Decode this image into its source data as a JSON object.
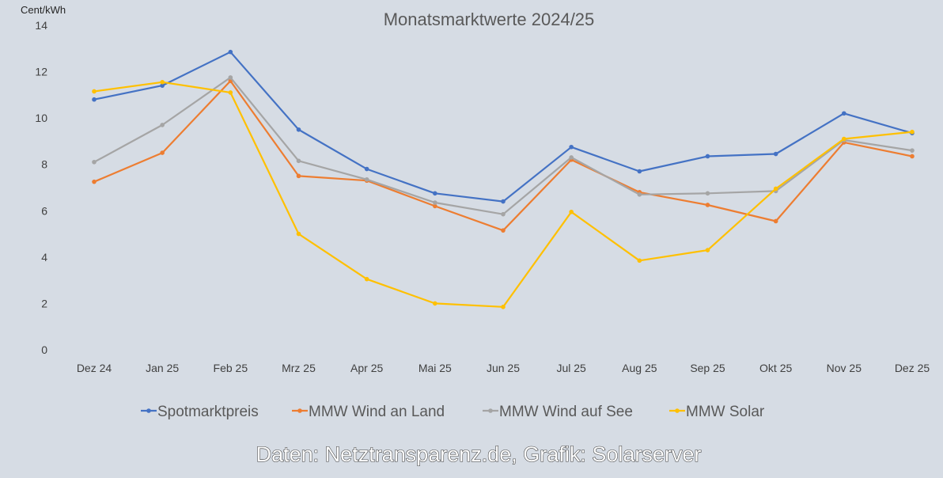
{
  "chart_data": {
    "type": "line",
    "title": "Monatsmarktwerte 2024/25",
    "unit_label": "Cent/kWh",
    "xlabel": "",
    "ylabel": "",
    "ylim": [
      0,
      14
    ],
    "yticks": [
      0,
      2,
      4,
      6,
      8,
      10,
      12,
      14
    ],
    "categories": [
      "Dez 24",
      "Jan 25",
      "Feb 25",
      "Mrz 25",
      "Apr 25",
      "Mai 25",
      "Jun 25",
      "Jul 25",
      "Aug 25",
      "Sep 25",
      "Okt 25",
      "Nov 25",
      "Dez 25"
    ],
    "series": [
      {
        "name": "Spotmarktpreis",
        "color": "#4472c4",
        "values": [
          10.8,
          11.4,
          12.85,
          9.5,
          7.8,
          6.75,
          6.4,
          8.75,
          7.7,
          8.35,
          8.45,
          10.2,
          9.35
        ]
      },
      {
        "name": "MMW Wind an Land",
        "color": "#ed7d31",
        "values": [
          7.25,
          8.5,
          11.6,
          7.5,
          7.3,
          6.2,
          5.15,
          8.2,
          6.8,
          6.25,
          5.55,
          8.95,
          8.35
        ]
      },
      {
        "name": "MMW Wind auf See",
        "color": "#a5a5a5",
        "values": [
          8.1,
          9.7,
          11.75,
          8.15,
          7.35,
          6.35,
          5.85,
          8.3,
          6.7,
          6.75,
          6.85,
          9.05,
          8.6
        ]
      },
      {
        "name": "MMW Solar",
        "color": "#ffc000",
        "values": [
          11.15,
          11.55,
          11.1,
          5.0,
          3.05,
          2.0,
          1.85,
          5.95,
          3.85,
          4.3,
          6.95,
          9.1,
          9.4
        ]
      }
    ],
    "grid": false,
    "legend_position": "bottom",
    "source": "Daten: Netztransparenz.de, Grafik: Solarserver"
  }
}
